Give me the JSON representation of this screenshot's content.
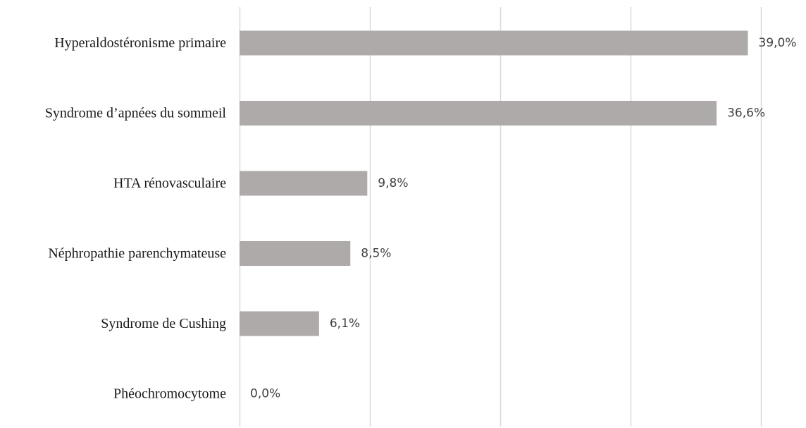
{
  "chart_data": {
    "type": "bar",
    "orientation": "horizontal",
    "categories": [
      "Hyperaldostéronisme primaire",
      "Syndrome d’apnées du sommeil",
      "HTA rénovasculaire",
      "Néphropathie parenchymateuse",
      "Syndrome de Cushing",
      "Phéochromocytome"
    ],
    "values": [
      39.0,
      36.6,
      9.8,
      8.5,
      6.1,
      0.0
    ],
    "data_labels": [
      "39,0%",
      "36,6%",
      "9,8%",
      "8,5%",
      "6,1%",
      "0,0%"
    ],
    "xlim": [
      0,
      40
    ],
    "x_gridline_step": 10,
    "grid": "vertical",
    "legend": "none",
    "title": "",
    "xlabel": "",
    "ylabel": ""
  },
  "colors": {
    "bar": "#aeaaaa",
    "gridline": "#d9d9d9",
    "category_text": "#1a1a1a",
    "data_label_text": "#404040"
  }
}
